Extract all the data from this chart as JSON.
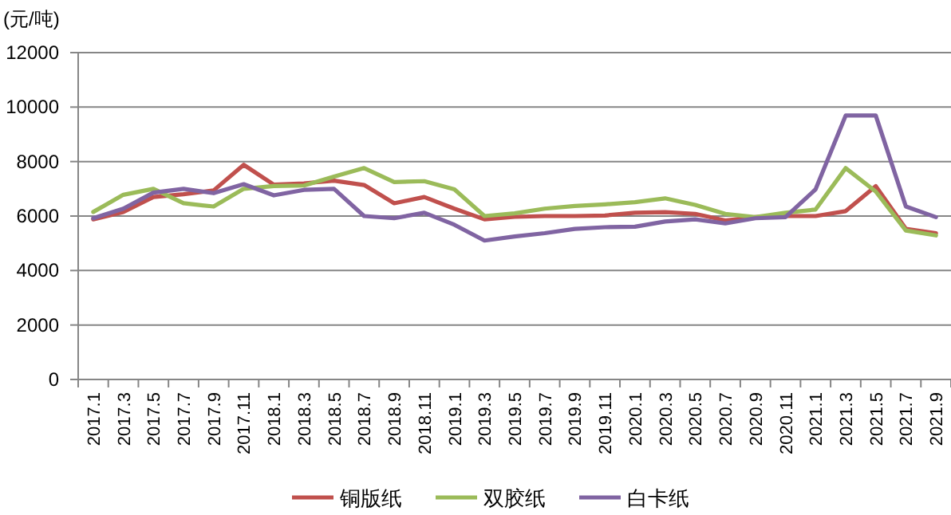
{
  "chart_data": {
    "type": "line",
    "ylabel": "(元/吨)",
    "categories": [
      "2017.1",
      "2017.3",
      "2017.5",
      "2017.7",
      "2017.9",
      "2017.11",
      "2018.1",
      "2018.3",
      "2018.5",
      "2018.7",
      "2018.9",
      "2018.11",
      "2019.1",
      "2019.3",
      "2019.5",
      "2019.7",
      "2019.9",
      "2019.11",
      "2020.1",
      "2020.3",
      "2020.5",
      "2020.7",
      "2020.9",
      "2020.11",
      "2021.1",
      "2021.3",
      "2021.5",
      "2021.7",
      "2021.9"
    ],
    "series": [
      {
        "name": "铜版纸",
        "color": "#c0504d",
        "values": [
          5880,
          6150,
          6700,
          6800,
          6940,
          7880,
          7150,
          7200,
          7300,
          7140,
          6470,
          6700,
          6270,
          5880,
          5970,
          6000,
          6000,
          6020,
          6120,
          6140,
          6080,
          5840,
          5960,
          6000,
          6000,
          6180,
          7100,
          5530,
          5370
        ]
      },
      {
        "name": "双胶纸",
        "color": "#9bbb59",
        "values": [
          6150,
          6780,
          7000,
          6470,
          6350,
          7000,
          7100,
          7120,
          7450,
          7760,
          7250,
          7280,
          6980,
          6000,
          6100,
          6270,
          6370,
          6430,
          6510,
          6650,
          6410,
          6080,
          5960,
          6120,
          6240,
          7760,
          6900,
          5470,
          5290
        ]
      },
      {
        "name": "白卡纸",
        "color": "#8064a2",
        "values": [
          5920,
          6270,
          6860,
          7000,
          6840,
          7170,
          6760,
          6960,
          7000,
          6000,
          5920,
          6120,
          5680,
          5100,
          5250,
          5370,
          5530,
          5590,
          5610,
          5800,
          5880,
          5730,
          5920,
          5960,
          6980,
          9690,
          9690,
          6350,
          5960
        ]
      }
    ],
    "ylim": [
      0,
      12000
    ],
    "yticks": [
      0,
      2000,
      4000,
      6000,
      8000,
      10000,
      12000
    ],
    "grid": "y",
    "legend": "bottom",
    "line_style": "solid",
    "marker": "none"
  }
}
